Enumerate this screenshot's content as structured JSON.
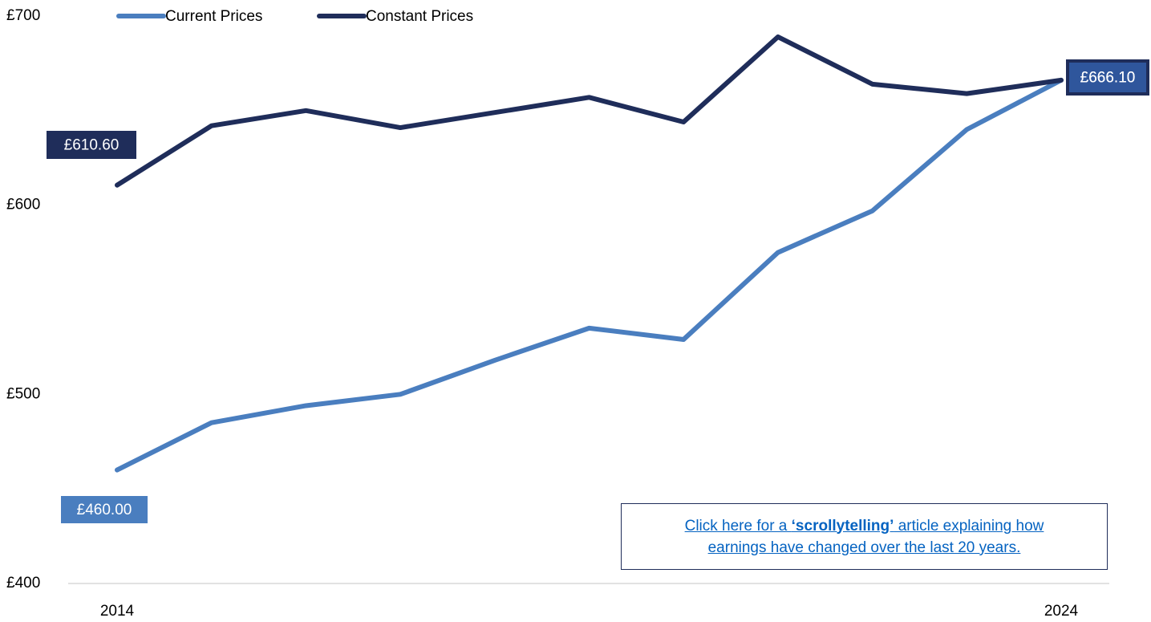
{
  "chart_data": {
    "type": "line",
    "categories": [
      "2014",
      null,
      null,
      null,
      null,
      null,
      null,
      null,
      null,
      null,
      "2024"
    ],
    "series": [
      {
        "name": "Current Prices",
        "color": "#4a7ebf",
        "values": [
          460.0,
          485,
          494,
          500,
          518,
          535,
          529,
          575,
          597,
          640,
          666.1
        ],
        "value_labels": [
          "£460.00",
          null,
          null,
          null,
          null,
          null,
          null,
          null,
          null,
          null,
          "£666.10"
        ]
      },
      {
        "name": "Constant Prices",
        "color": "#1f2d5a",
        "values": [
          610.6,
          642,
          650,
          641,
          649,
          657,
          644,
          689,
          664,
          659,
          666.1
        ],
        "value_labels": [
          "£610.60",
          null,
          null,
          null,
          null,
          null,
          null,
          null,
          null,
          null,
          "£666.10"
        ]
      }
    ],
    "ylim": [
      400,
      700
    ],
    "yticks": [
      {
        "value": 400,
        "label": "£400"
      },
      {
        "value": 500,
        "label": "£500"
      },
      {
        "value": 600,
        "label": "£600"
      },
      {
        "value": 700,
        "label": "£700"
      }
    ],
    "grid": false,
    "legend": "top",
    "annotation": {
      "lines": [
        [
          "Click here for a ",
          "‘scrollytelling’",
          " article explaining how"
        ],
        [
          "earnings have changed over the last 20 years."
        ]
      ]
    }
  }
}
